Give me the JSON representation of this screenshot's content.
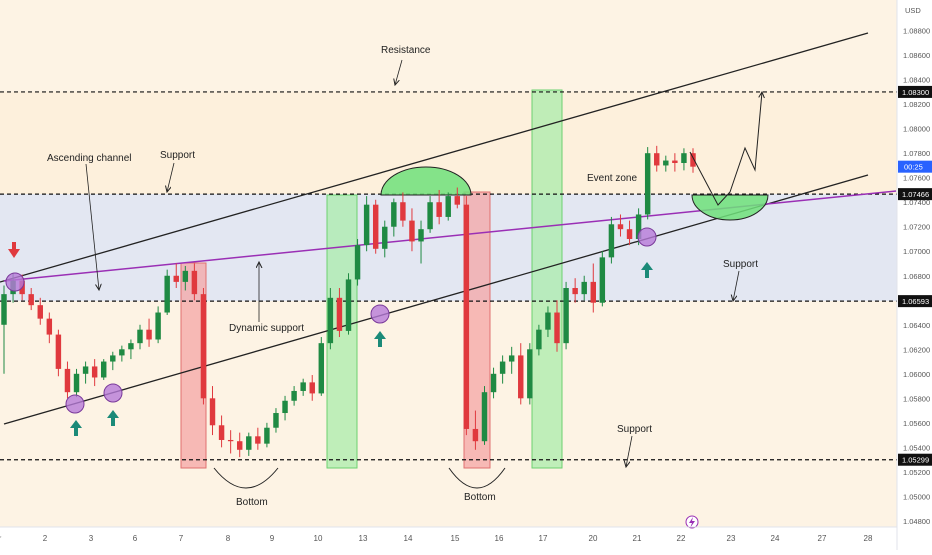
{
  "chart_data": {
    "type": "candlestick",
    "currency": "USD",
    "y_axis": {
      "ylim": [
        1.0475,
        1.0905
      ],
      "ticks": [
        "1.04800",
        "1.05000",
        "1.05200",
        "1.05400",
        "1.05600",
        "1.05800",
        "1.06000",
        "1.06200",
        "1.06400",
        "1.06600",
        "1.06800",
        "1.07000",
        "1.07200",
        "1.07400",
        "1.07600",
        "1.07800",
        "1.08000",
        "1.08200",
        "1.08400",
        "1.08600",
        "1.08800"
      ]
    },
    "x_axis": {
      "ticks": [
        "r",
        "2",
        "3",
        "6",
        "7",
        "8",
        "9",
        "10",
        "13",
        "14",
        "15",
        "16",
        "17",
        "20",
        "21",
        "22",
        "23",
        "24",
        "27",
        "28"
      ]
    },
    "levels": [
      {
        "price": 1.083,
        "label": "1.08300",
        "style": "dashed"
      },
      {
        "price": 1.07466,
        "label": "1.07466",
        "style": "dashed"
      },
      {
        "price": 1.06593,
        "label": "1.06593",
        "style": "dashed"
      },
      {
        "price": 1.05299,
        "label": "1.05299",
        "style": "dashed"
      }
    ],
    "current_price_label": "00:25",
    "current_price": 1.0769,
    "channel": {
      "upper": [
        {
          "day": 0,
          "price": 1.0678
        },
        {
          "day": 20.5,
          "price": 1.0875
        }
      ],
      "lower": [
        {
          "day": 0,
          "price": 1.0576
        },
        {
          "day": 20.5,
          "price": 1.0774
        }
      ]
    },
    "dynamic_support": [
      {
        "day": 0,
        "price": 1.068
      },
      {
        "day": 21.2,
        "price": 1.0749
      }
    ],
    "zones": {
      "upper_fill_color": "#fdf0dc",
      "middle_fill_color": "#e3e7f2",
      "lower_fill_color": "#fdf3e4",
      "red_box_color": "#f4a6a6",
      "green_box_color": "#a9ecab"
    },
    "annotations": [
      {
        "text": "Resistance"
      },
      {
        "text": "Ascending channel"
      },
      {
        "text": "Support"
      },
      {
        "text": "Dynamic support"
      },
      {
        "text": "Event zone"
      },
      {
        "text": "Support"
      },
      {
        "text": "Support"
      },
      {
        "text": "Bottom"
      },
      {
        "text": "Bottom"
      }
    ],
    "candles": [
      {
        "o": 1.064,
        "h": 1.0672,
        "l": 1.06,
        "c": 1.0665
      },
      {
        "o": 1.0665,
        "h": 1.0682,
        "l": 1.0658,
        "c": 1.0676
      },
      {
        "o": 1.0676,
        "h": 1.0681,
        "l": 1.066,
        "c": 1.0665
      },
      {
        "o": 1.0665,
        "h": 1.067,
        "l": 1.0652,
        "c": 1.0656
      },
      {
        "o": 1.0656,
        "h": 1.0662,
        "l": 1.064,
        "c": 1.0645
      },
      {
        "o": 1.0645,
        "h": 1.065,
        "l": 1.0625,
        "c": 1.0632
      },
      {
        "o": 1.0632,
        "h": 1.0636,
        "l": 1.0598,
        "c": 1.0604
      },
      {
        "o": 1.0604,
        "h": 1.061,
        "l": 1.058,
        "c": 1.0585
      },
      {
        "o": 1.0585,
        "h": 1.0604,
        "l": 1.0581,
        "c": 1.06
      },
      {
        "o": 1.06,
        "h": 1.061,
        "l": 1.0592,
        "c": 1.0606
      },
      {
        "o": 1.0606,
        "h": 1.0612,
        "l": 1.059,
        "c": 1.0597
      },
      {
        "o": 1.0597,
        "h": 1.0612,
        "l": 1.0595,
        "c": 1.061
      },
      {
        "o": 1.061,
        "h": 1.0618,
        "l": 1.0603,
        "c": 1.0615
      },
      {
        "o": 1.0615,
        "h": 1.0623,
        "l": 1.061,
        "c": 1.062
      },
      {
        "o": 1.062,
        "h": 1.0628,
        "l": 1.0612,
        "c": 1.0625
      },
      {
        "o": 1.0625,
        "h": 1.064,
        "l": 1.062,
        "c": 1.0636
      },
      {
        "o": 1.0636,
        "h": 1.0645,
        "l": 1.0622,
        "c": 1.0628
      },
      {
        "o": 1.0628,
        "h": 1.0655,
        "l": 1.0625,
        "c": 1.065
      },
      {
        "o": 1.065,
        "h": 1.0685,
        "l": 1.0648,
        "c": 1.068
      },
      {
        "o": 1.068,
        "h": 1.069,
        "l": 1.067,
        "c": 1.0675
      },
      {
        "o": 1.0675,
        "h": 1.0688,
        "l": 1.0668,
        "c": 1.0684
      },
      {
        "o": 1.0684,
        "h": 1.069,
        "l": 1.066,
        "c": 1.0665
      },
      {
        "o": 1.0665,
        "h": 1.067,
        "l": 1.0575,
        "c": 1.058
      },
      {
        "o": 1.058,
        "h": 1.059,
        "l": 1.055,
        "c": 1.0558
      },
      {
        "o": 1.0558,
        "h": 1.0566,
        "l": 1.054,
        "c": 1.0546
      },
      {
        "o": 1.0546,
        "h": 1.0554,
        "l": 1.0535,
        "c": 1.0545
      },
      {
        "o": 1.0545,
        "h": 1.0552,
        "l": 1.0532,
        "c": 1.0538
      },
      {
        "o": 1.0538,
        "h": 1.0552,
        "l": 1.0533,
        "c": 1.0549
      },
      {
        "o": 1.0549,
        "h": 1.0556,
        "l": 1.0538,
        "c": 1.0543
      },
      {
        "o": 1.0543,
        "h": 1.056,
        "l": 1.054,
        "c": 1.0556
      },
      {
        "o": 1.0556,
        "h": 1.0572,
        "l": 1.0552,
        "c": 1.0568
      },
      {
        "o": 1.0568,
        "h": 1.0582,
        "l": 1.0562,
        "c": 1.0578
      },
      {
        "o": 1.0578,
        "h": 1.059,
        "l": 1.0574,
        "c": 1.0586
      },
      {
        "o": 1.0586,
        "h": 1.0596,
        "l": 1.0582,
        "c": 1.0593
      },
      {
        "o": 1.0593,
        "h": 1.0599,
        "l": 1.0578,
        "c": 1.0584
      },
      {
        "o": 1.0584,
        "h": 1.063,
        "l": 1.0582,
        "c": 1.0625
      },
      {
        "o": 1.0625,
        "h": 1.067,
        "l": 1.062,
        "c": 1.0662
      },
      {
        "o": 1.0662,
        "h": 1.067,
        "l": 1.063,
        "c": 1.0635
      },
      {
        "o": 1.0635,
        "h": 1.0682,
        "l": 1.0632,
        "c": 1.0677
      },
      {
        "o": 1.0677,
        "h": 1.071,
        "l": 1.0672,
        "c": 1.0705
      },
      {
        "o": 1.0705,
        "h": 1.0745,
        "l": 1.07,
        "c": 1.0738
      },
      {
        "o": 1.0738,
        "h": 1.0742,
        "l": 1.0698,
        "c": 1.0702
      },
      {
        "o": 1.0702,
        "h": 1.0725,
        "l": 1.0695,
        "c": 1.072
      },
      {
        "o": 1.072,
        "h": 1.0743,
        "l": 1.0712,
        "c": 1.074
      },
      {
        "o": 1.074,
        "h": 1.0748,
        "l": 1.072,
        "c": 1.0725
      },
      {
        "o": 1.0725,
        "h": 1.0735,
        "l": 1.07,
        "c": 1.0708
      },
      {
        "o": 1.0708,
        "h": 1.0725,
        "l": 1.069,
        "c": 1.0718
      },
      {
        "o": 1.0718,
        "h": 1.0745,
        "l": 1.0715,
        "c": 1.074
      },
      {
        "o": 1.074,
        "h": 1.075,
        "l": 1.0722,
        "c": 1.0728
      },
      {
        "o": 1.0728,
        "h": 1.0748,
        "l": 1.0725,
        "c": 1.0745
      },
      {
        "o": 1.0745,
        "h": 1.0752,
        "l": 1.0735,
        "c": 1.0738
      },
      {
        "o": 1.0738,
        "h": 1.0745,
        "l": 1.055,
        "c": 1.0555
      },
      {
        "o": 1.0555,
        "h": 1.057,
        "l": 1.0538,
        "c": 1.0545
      },
      {
        "o": 1.0545,
        "h": 1.059,
        "l": 1.0542,
        "c": 1.0585
      },
      {
        "o": 1.0585,
        "h": 1.0605,
        "l": 1.058,
        "c": 1.06
      },
      {
        "o": 1.06,
        "h": 1.0615,
        "l": 1.0592,
        "c": 1.061
      },
      {
        "o": 1.061,
        "h": 1.0622,
        "l": 1.06,
        "c": 1.0615
      },
      {
        "o": 1.0615,
        "h": 1.0625,
        "l": 1.0575,
        "c": 1.058
      },
      {
        "o": 1.058,
        "h": 1.0625,
        "l": 1.0575,
        "c": 1.062
      },
      {
        "o": 1.062,
        "h": 1.064,
        "l": 1.0615,
        "c": 1.0636
      },
      {
        "o": 1.0636,
        "h": 1.0655,
        "l": 1.063,
        "c": 1.065
      },
      {
        "o": 1.065,
        "h": 1.066,
        "l": 1.0618,
        "c": 1.0625
      },
      {
        "o": 1.0625,
        "h": 1.0675,
        "l": 1.062,
        "c": 1.067
      },
      {
        "o": 1.067,
        "h": 1.0678,
        "l": 1.0658,
        "c": 1.0665
      },
      {
        "o": 1.0665,
        "h": 1.068,
        "l": 1.066,
        "c": 1.0675
      },
      {
        "o": 1.0675,
        "h": 1.069,
        "l": 1.065,
        "c": 1.0658
      },
      {
        "o": 1.0658,
        "h": 1.07,
        "l": 1.0655,
        "c": 1.0695
      },
      {
        "o": 1.0695,
        "h": 1.0728,
        "l": 1.069,
        "c": 1.0722
      },
      {
        "o": 1.0722,
        "h": 1.073,
        "l": 1.0712,
        "c": 1.0718
      },
      {
        "o": 1.0718,
        "h": 1.0725,
        "l": 1.0705,
        "c": 1.071
      },
      {
        "o": 1.071,
        "h": 1.0735,
        "l": 1.0705,
        "c": 1.073
      },
      {
        "o": 1.073,
        "h": 1.0785,
        "l": 1.0726,
        "c": 1.078
      },
      {
        "o": 1.078,
        "h": 1.0786,
        "l": 1.0765,
        "c": 1.077
      },
      {
        "o": 1.077,
        "h": 1.0778,
        "l": 1.0765,
        "c": 1.0774
      },
      {
        "o": 1.0774,
        "h": 1.078,
        "l": 1.0765,
        "c": 1.0772
      },
      {
        "o": 1.0772,
        "h": 1.0784,
        "l": 1.0766,
        "c": 1.078
      },
      {
        "o": 1.078,
        "h": 1.0784,
        "l": 1.0764,
        "c": 1.0769
      }
    ]
  }
}
